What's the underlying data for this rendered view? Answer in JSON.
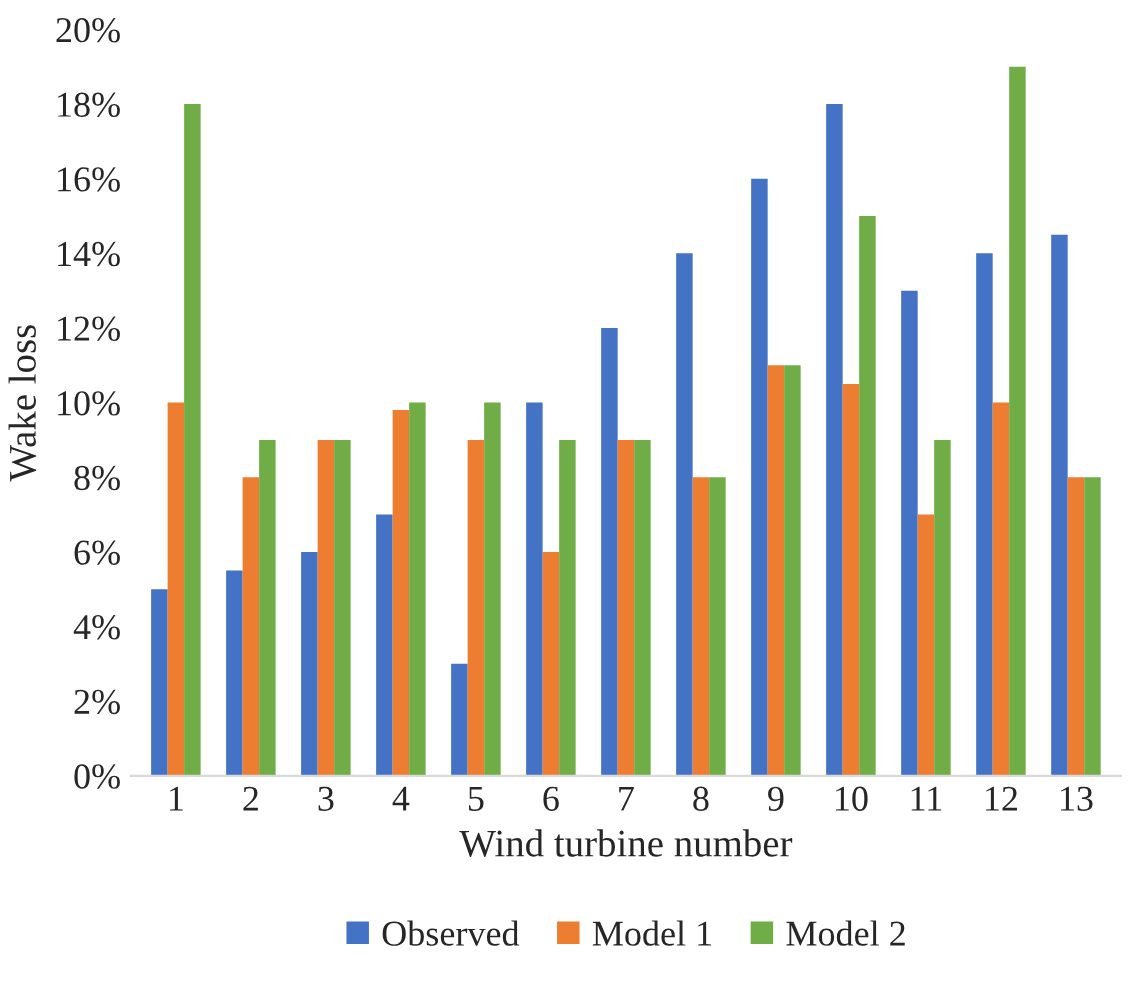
{
  "chart_data": {
    "type": "bar",
    "xlabel": "Wind turbine number",
    "ylabel": "Wake loss",
    "categories": [
      "1",
      "2",
      "3",
      "4",
      "5",
      "6",
      "7",
      "8",
      "9",
      "10",
      "11",
      "12",
      "13"
    ],
    "series": [
      {
        "name": "Observed",
        "color": "#4472c4",
        "values": [
          5,
          5.5,
          6,
          7,
          3,
          10,
          12,
          14,
          16,
          18,
          13,
          14,
          14.5
        ]
      },
      {
        "name": "Model 1",
        "color": "#ed7d31",
        "values": [
          10,
          8,
          9,
          9.8,
          9,
          6,
          9,
          8,
          11,
          10.5,
          7,
          10,
          8
        ]
      },
      {
        "name": "Model 2",
        "color": "#70ad47",
        "values": [
          18,
          9,
          9,
          10,
          10,
          9,
          9,
          8,
          11,
          15,
          9,
          19,
          8
        ]
      }
    ],
    "ylim": [
      0,
      20
    ],
    "yticks": [
      {
        "value": 0,
        "label": "0%"
      },
      {
        "value": 2,
        "label": "2%"
      },
      {
        "value": 4,
        "label": "4%"
      },
      {
        "value": 6,
        "label": "6%"
      },
      {
        "value": 8,
        "label": "8%"
      },
      {
        "value": 10,
        "label": "10%"
      },
      {
        "value": 12,
        "label": "12%"
      },
      {
        "value": 14,
        "label": "14%"
      },
      {
        "value": 16,
        "label": "16%"
      },
      {
        "value": 18,
        "label": "18%"
      },
      {
        "value": 20,
        "label": "20%"
      }
    ],
    "grid": false,
    "legend": "bottom"
  }
}
